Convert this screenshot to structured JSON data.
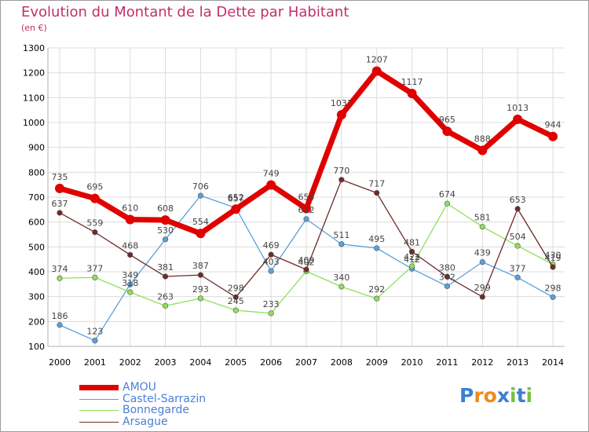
{
  "chart_data": {
    "type": "line",
    "title": "Evolution du Montant de la Dette par Habitant",
    "subtitle": "(en €)",
    "x": [
      "2000",
      "2001",
      "2002",
      "2003",
      "2004",
      "2005",
      "2006",
      "2007",
      "2008",
      "2009",
      "2010",
      "2011",
      "2012",
      "2013",
      "2014"
    ],
    "ylim": [
      100,
      1300
    ],
    "yticks": [
      100,
      200,
      300,
      400,
      500,
      600,
      700,
      800,
      900,
      1000,
      1100,
      1200,
      1300
    ],
    "grid": true,
    "legend_position": "bottom-left",
    "series": [
      {
        "name": "AMOU",
        "color": "#e00000",
        "values": [
          735,
          695,
          610,
          608,
          554,
          652,
          749,
          654,
          1031,
          1207,
          1117,
          965,
          888,
          1013,
          944
        ]
      },
      {
        "name": "Castel-Sarrazin",
        "color": "#5aa0dc",
        "values": [
          186,
          123,
          349,
          530,
          706,
          657,
          403,
          612,
          511,
          495,
          412,
          342,
          439,
          377,
          298
        ]
      },
      {
        "name": "Bonnegarde",
        "color": "#8ee05a",
        "values": [
          374,
          377,
          318,
          263,
          293,
          245,
          233,
          402,
          340,
          292,
          422,
          674,
          581,
          504,
          430
        ]
      },
      {
        "name": "Arsague",
        "color": "#6e2a2a",
        "values": [
          637,
          559,
          468,
          381,
          387,
          298,
          469,
          409,
          770,
          717,
          481,
          380,
          299,
          653,
          419
        ]
      }
    ]
  },
  "logo": {
    "text": "Proxiti",
    "colors": [
      "#3a7fd5",
      "#f08a1c",
      "#f08a1c",
      "#3a7fd5",
      "#79c142",
      "#3a7fd5",
      "#79c142"
    ]
  }
}
